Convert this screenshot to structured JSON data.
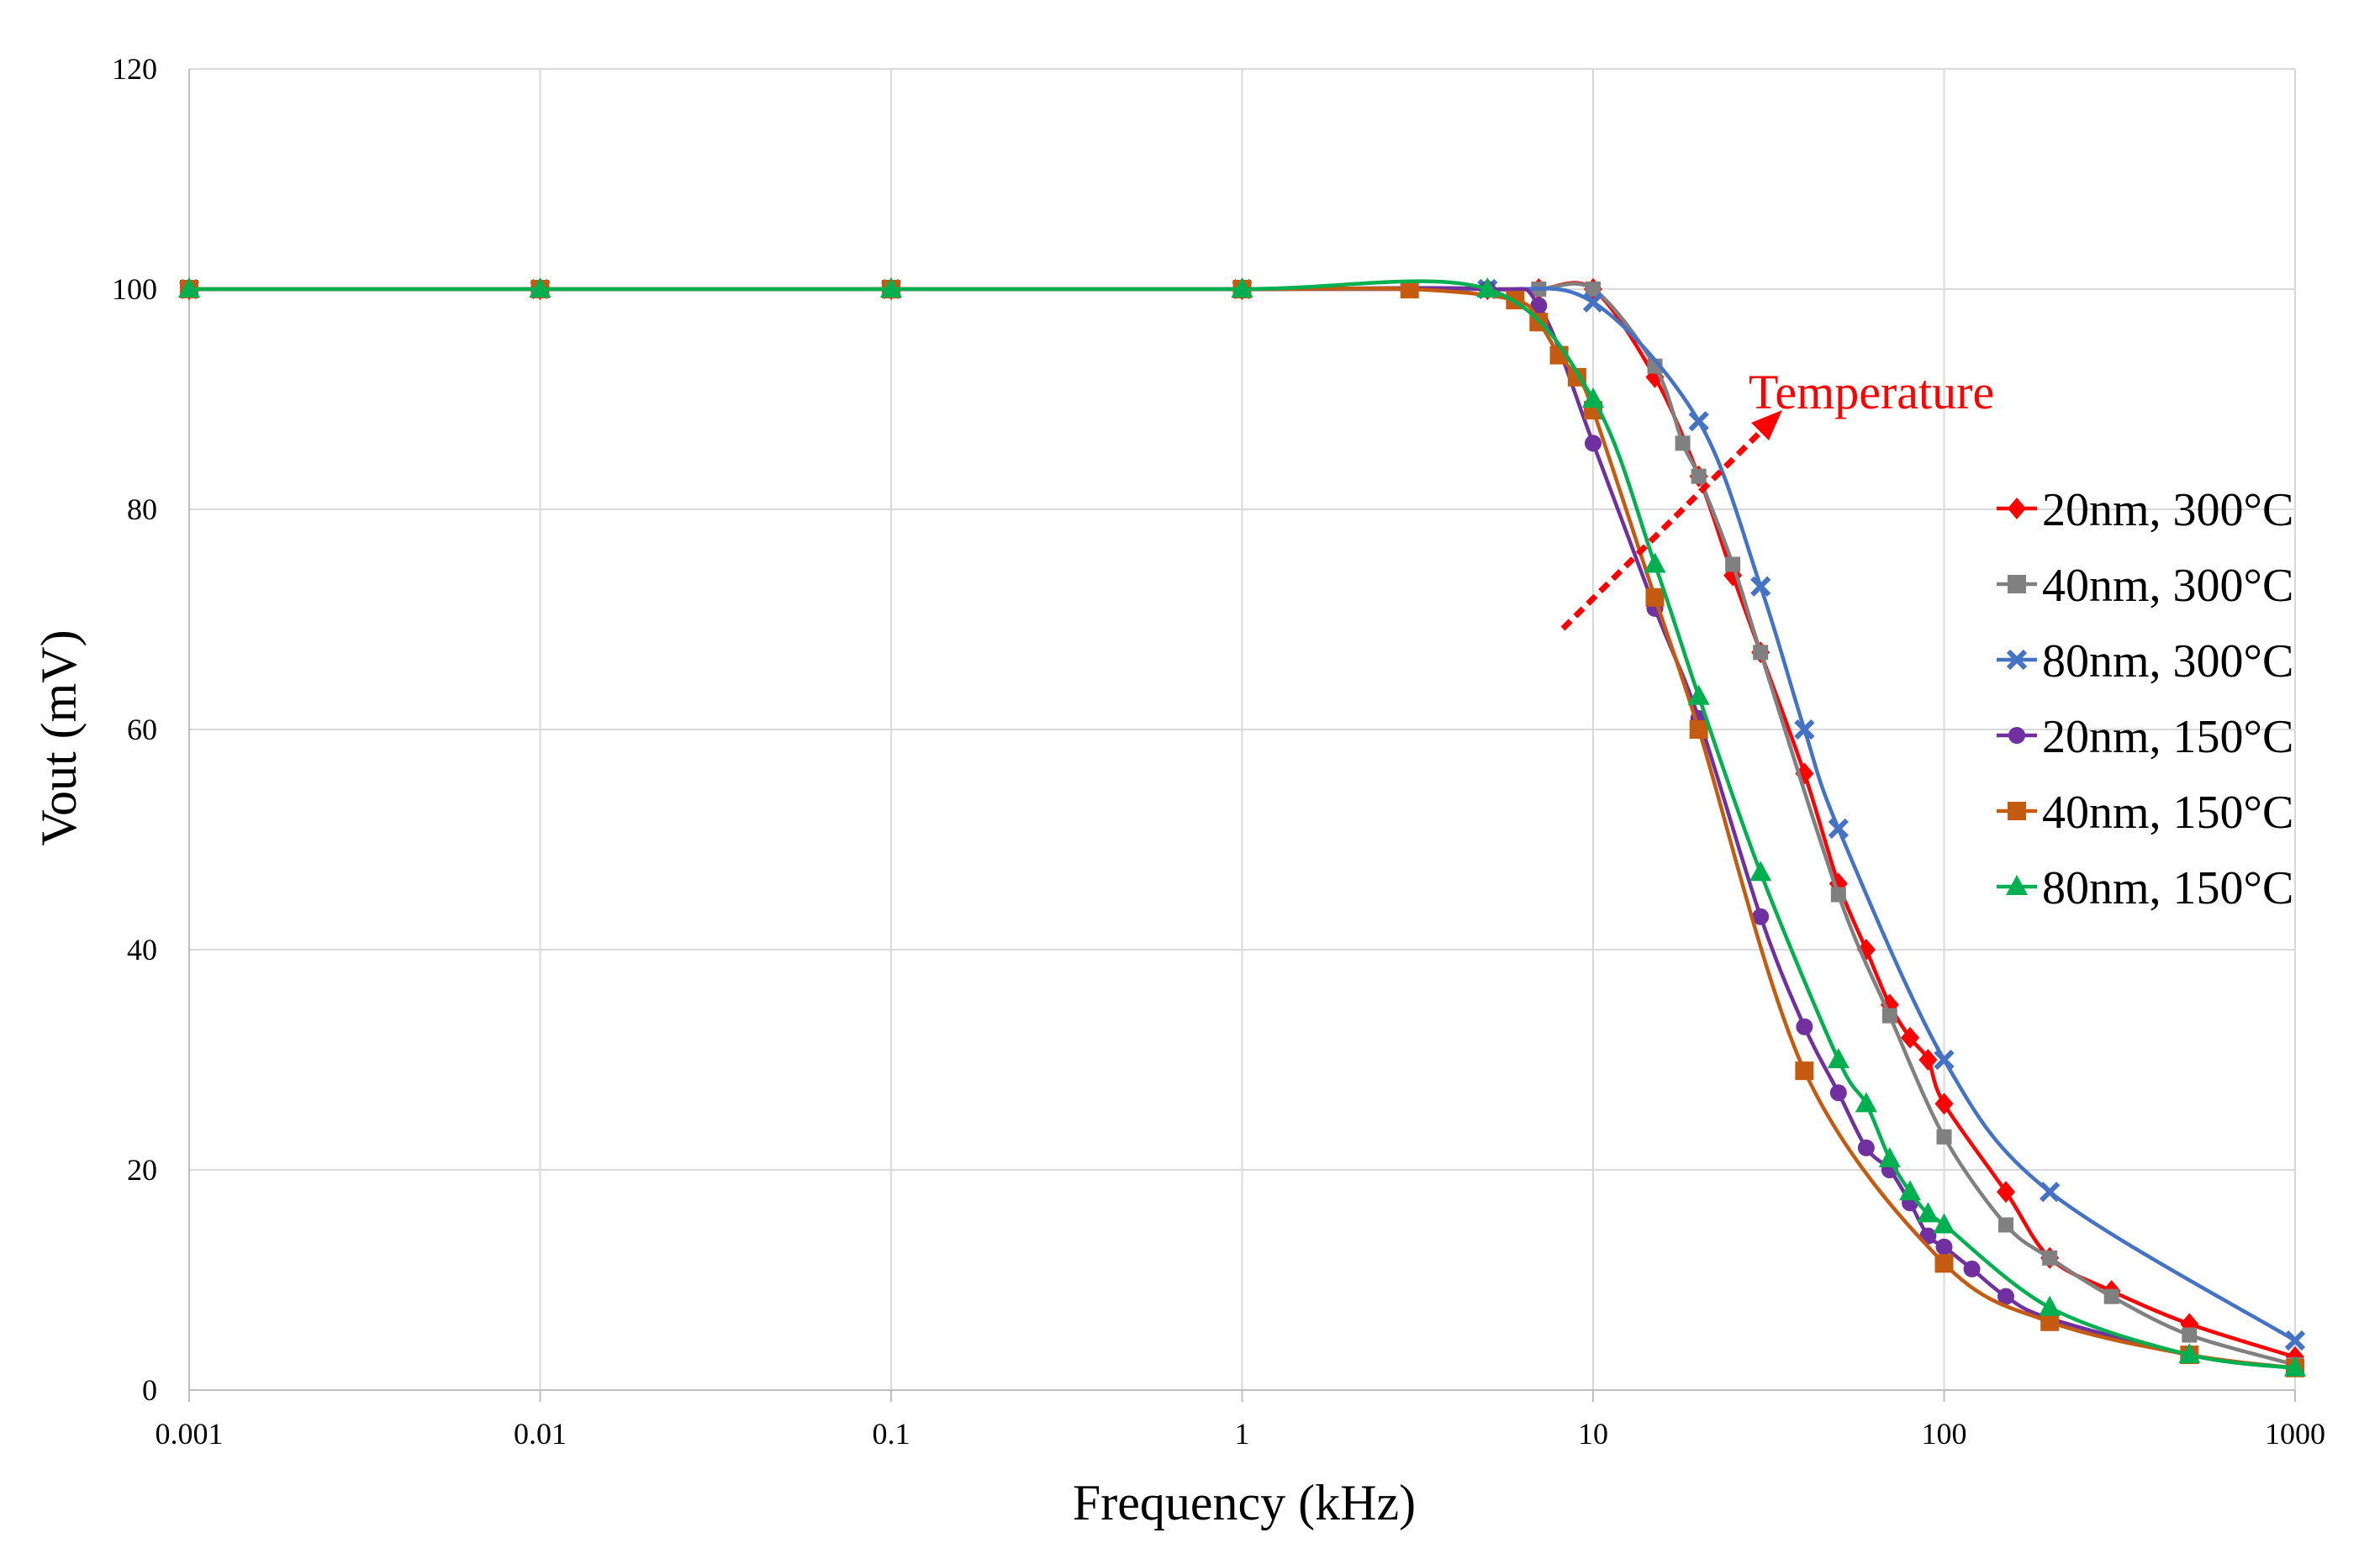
{
  "chart_data": {
    "type": "line",
    "title": "",
    "xlabel": "Frequency (kHz)",
    "ylabel": "Vout  (mV)",
    "xscale": "log",
    "xlim": [
      0.001,
      1000
    ],
    "ylim": [
      0,
      120
    ],
    "x_ticks": [
      "0.001",
      "0.01",
      "0.1",
      "1",
      "10",
      "100",
      "1000"
    ],
    "y_ticks": [
      "0",
      "20",
      "40",
      "60",
      "80",
      "100",
      "120"
    ],
    "grid": true,
    "legend_position": "right",
    "annotation": {
      "text": "Temperature",
      "color": "#ff0000"
    },
    "series": [
      {
        "name": "20nm, 300°C",
        "color": "#ff0000",
        "marker": "diamond",
        "x": [
          0.001,
          0.01,
          0.1,
          1,
          5,
          7,
          10,
          15,
          20,
          25,
          30,
          40,
          50,
          60,
          70,
          80,
          90,
          100,
          150,
          200,
          300,
          500,
          1000
        ],
        "y": [
          100,
          100,
          100,
          100,
          100,
          100,
          100,
          92,
          83,
          74,
          67,
          56,
          46,
          40,
          35,
          32,
          30,
          26,
          18,
          12,
          9,
          6,
          3
        ]
      },
      {
        "name": "40nm, 300°C",
        "color": "#808080",
        "marker": "square",
        "x": [
          0.001,
          0.01,
          0.1,
          1,
          5,
          7,
          10,
          15,
          18,
          20,
          25,
          30,
          50,
          70,
          100,
          150,
          200,
          300,
          500,
          1000
        ],
        "y": [
          100,
          100,
          100,
          100,
          100,
          100,
          100,
          93,
          86,
          83,
          75,
          67,
          45,
          34,
          23,
          15,
          12,
          8.5,
          5,
          2.3
        ]
      },
      {
        "name": "80nm, 300°C",
        "color": "#4472c4",
        "marker": "x",
        "x": [
          0.001,
          0.01,
          0.1,
          1,
          5,
          10,
          20,
          30,
          40,
          50,
          100,
          200,
          1000
        ],
        "y": [
          100,
          100,
          100,
          100,
          100,
          98.8,
          88,
          73,
          60,
          51,
          30,
          18,
          4.5
        ]
      },
      {
        "name": "20nm, 150°C",
        "color": "#7030a0",
        "marker": "circle",
        "x": [
          0.001,
          0.01,
          0.1,
          1,
          5,
          7,
          10,
          15,
          20,
          30,
          40,
          50,
          60,
          70,
          80,
          90,
          100,
          120,
          150,
          200,
          500,
          1000
        ],
        "y": [
          100,
          100,
          100,
          100,
          100,
          98.5,
          86,
          71,
          61,
          43,
          33,
          27,
          22,
          20,
          17,
          14,
          13,
          11,
          8.5,
          6.5,
          3.2,
          2
        ]
      },
      {
        "name": "40nm, 150°C",
        "color": "#c55a11",
        "marker": "square",
        "x": [
          0.001,
          0.01,
          0.1,
          1,
          3,
          6,
          7,
          8,
          9,
          10,
          15,
          20,
          40,
          100,
          200,
          500,
          1000
        ],
        "y": [
          100,
          100,
          100,
          100,
          100,
          99,
          97,
          94,
          92,
          89,
          72,
          60,
          29,
          11.5,
          6.2,
          3.2,
          2
        ]
      },
      {
        "name": "80nm, 150°C",
        "color": "#00b050",
        "marker": "triangle",
        "x": [
          0.001,
          0.01,
          0.1,
          1,
          5,
          10,
          15,
          20,
          30,
          50,
          60,
          70,
          80,
          90,
          100,
          200,
          500,
          1000
        ],
        "y": [
          100,
          100,
          100,
          100,
          100,
          90,
          75,
          63,
          47,
          30,
          26,
          21,
          18,
          16,
          15,
          7.5,
          3.2,
          2
        ]
      }
    ]
  }
}
